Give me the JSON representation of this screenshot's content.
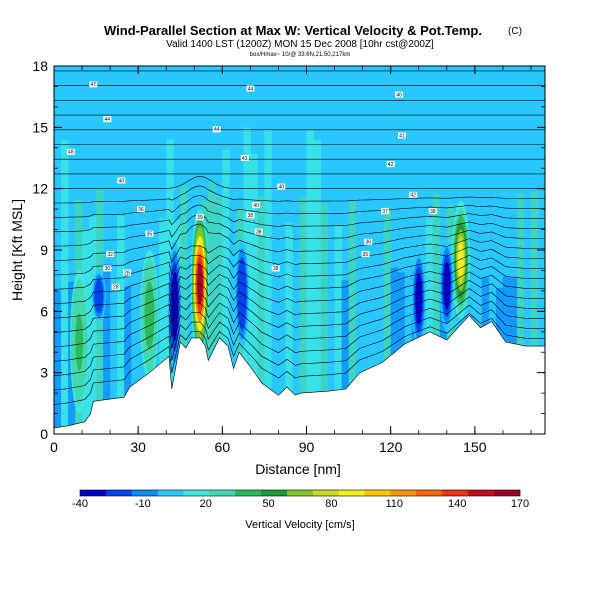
{
  "chart_data": {
    "type": "heatmap",
    "title": "Wind-Parallel Section at Max W: Vertical Velocity & Pot.Temp.",
    "title_mark": "(C)",
    "subtitle": "Valid 1400 LST (1200Z) MON 15 Dec 2008 [10hr cst@200Z]",
    "subtitle2": "box/Hmax~ 10/@ 33.6N,21.50,217km",
    "xlabel": "Distance [nm]",
    "ylabel": "Height [Kft MSL]",
    "xlim": [
      0,
      175
    ],
    "ylim": [
      0,
      18
    ],
    "x_ticks": [
      0,
      30,
      60,
      90,
      120,
      150
    ],
    "y_ticks": [
      0,
      3,
      6,
      9,
      12,
      15,
      18
    ],
    "colorbar": {
      "label": "Vertical Velocity [cm/s]",
      "ticks": [
        -40,
        -10,
        20,
        50,
        80,
        110,
        140,
        170
      ],
      "colors": [
        "#0000c8",
        "#0044f0",
        "#0a8cff",
        "#28c8ff",
        "#3ee8e0",
        "#44d8b0",
        "#2cba5c",
        "#1e9c3a",
        "#84c42c",
        "#c8dc1e",
        "#f4f01e",
        "#ffc800",
        "#ff9600",
        "#ff6400",
        "#f03214",
        "#c80a1e",
        "#a00028"
      ]
    },
    "terrain_profile": {
      "x": [
        0,
        5,
        11,
        13,
        14,
        25,
        27,
        34,
        41,
        42,
        45,
        47,
        49,
        52,
        54,
        55,
        59,
        62,
        64,
        66,
        71,
        74,
        80,
        83,
        86,
        88,
        98,
        104,
        109,
        117,
        125,
        134,
        140,
        144,
        148,
        152,
        156,
        161,
        168,
        175
      ],
      "y": [
        0.3,
        0.4,
        0.6,
        1.0,
        1.6,
        1.8,
        2.3,
        3.0,
        3.8,
        2.2,
        4.5,
        4.2,
        4.7,
        4.7,
        4.3,
        3.6,
        4.7,
        4.3,
        3.2,
        4.0,
        3.1,
        2.5,
        1.9,
        2.3,
        1.9,
        2.0,
        2.1,
        2.2,
        3.0,
        3.5,
        4.4,
        5.0,
        4.6,
        5.2,
        5.8,
        5.2,
        5.5,
        4.5,
        4.3,
        4.3
      ]
    },
    "updraft_cores": [
      {
        "x": 52,
        "bottom": 3.7,
        "top": 11.0,
        "peak_cms": 160
      },
      {
        "x": 145,
        "bottom": 5.6,
        "top": 11.4,
        "peak_cms": 90
      },
      {
        "x": 34,
        "bottom": 2.6,
        "top": 9.0,
        "peak_cms": 45
      },
      {
        "x": 9,
        "bottom": 1.0,
        "top": 8.0,
        "peak_cms": 40
      }
    ],
    "downdraft_regions": [
      {
        "x": 43,
        "bottom": 3.0,
        "top": 9.5,
        "min_cms": -30
      },
      {
        "x": 67,
        "bottom": 4.2,
        "top": 9.5,
        "min_cms": -25
      },
      {
        "x": 130,
        "bottom": 4.2,
        "top": 9.0,
        "min_cms": -30
      },
      {
        "x": 140,
        "bottom": 5.0,
        "top": 9.5,
        "min_cms": -35
      },
      {
        "x": 16,
        "bottom": 5.5,
        "top": 8.0,
        "min_cms": -25
      }
    ],
    "theta_contour_levels_k": [
      285,
      288,
      291,
      294,
      297,
      300,
      303,
      306,
      309,
      312,
      315,
      318,
      321,
      324,
      327,
      330,
      333,
      336,
      339,
      342,
      345,
      348,
      351,
      354
    ],
    "contour_labels": [
      {
        "x": 14,
        "y": 17.1,
        "text": "47"
      },
      {
        "x": 70,
        "y": 16.9,
        "text": "44"
      },
      {
        "x": 123,
        "y": 16.6,
        "text": "46"
      },
      {
        "x": 19,
        "y": 15.4,
        "text": "44"
      },
      {
        "x": 58,
        "y": 14.9,
        "text": "44"
      },
      {
        "x": 124,
        "y": 14.6,
        "text": "41"
      },
      {
        "x": 6,
        "y": 13.8,
        "text": "48"
      },
      {
        "x": 68,
        "y": 13.5,
        "text": "43"
      },
      {
        "x": 120,
        "y": 13.2,
        "text": "42"
      },
      {
        "x": 24,
        "y": 12.4,
        "text": "40"
      },
      {
        "x": 81,
        "y": 12.1,
        "text": "40"
      },
      {
        "x": 128,
        "y": 11.7,
        "text": "42"
      },
      {
        "x": 31,
        "y": 11.0,
        "text": "36"
      },
      {
        "x": 72,
        "y": 11.2,
        "text": "40"
      },
      {
        "x": 118,
        "y": 10.9,
        "text": "37"
      },
      {
        "x": 135,
        "y": 10.9,
        "text": "38"
      },
      {
        "x": 52,
        "y": 10.6,
        "text": "39"
      },
      {
        "x": 70,
        "y": 10.7,
        "text": "38"
      },
      {
        "x": 34,
        "y": 9.8,
        "text": "35"
      },
      {
        "x": 73,
        "y": 9.9,
        "text": "38"
      },
      {
        "x": 112,
        "y": 9.4,
        "text": "36"
      },
      {
        "x": 20,
        "y": 8.8,
        "text": "32"
      },
      {
        "x": 111,
        "y": 8.8,
        "text": "35"
      },
      {
        "x": 19,
        "y": 8.1,
        "text": "30"
      },
      {
        "x": 26,
        "y": 7.9,
        "text": "28"
      },
      {
        "x": 22,
        "y": 7.2,
        "text": "28"
      },
      {
        "x": 79,
        "y": 8.1,
        "text": "38"
      }
    ]
  }
}
